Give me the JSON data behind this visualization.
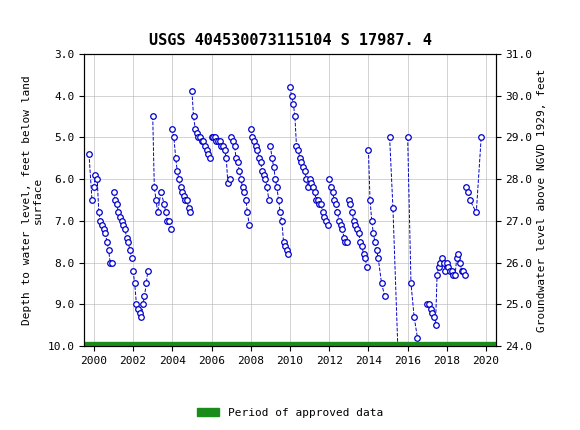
{
  "title": "USGS 404530073115104 S 17987. 4",
  "ylabel_left": "Depth to water level, feet below land\nsurface",
  "ylabel_right": "Groundwater level above NGVD 1929, feet",
  "xlim": [
    1999.5,
    2020.5
  ],
  "ylim_left": [
    10.0,
    3.0
  ],
  "ylim_right": [
    24.0,
    31.0
  ],
  "xticks": [
    2000,
    2002,
    2004,
    2006,
    2008,
    2010,
    2012,
    2014,
    2016,
    2018,
    2020
  ],
  "yticks_left": [
    3.0,
    4.0,
    5.0,
    6.0,
    7.0,
    8.0,
    9.0,
    10.0
  ],
  "yticks_right": [
    24.0,
    25.0,
    26.0,
    27.0,
    28.0,
    29.0,
    30.0,
    31.0
  ],
  "header_color": "#1a6b3c",
  "data_color": "#0000cc",
  "approved_color": "#1a8c1a",
  "marker": "o",
  "markersize": 4,
  "linestyle": "--",
  "linewidth": 0.7,
  "segments": [
    {
      "x": [
        1999.75,
        1999.9
      ],
      "y": [
        5.4,
        6.5
      ]
    },
    {
      "x": [
        2000.0,
        2000.08,
        2000.17,
        2000.25,
        2000.33,
        2000.42,
        2000.5,
        2000.58,
        2000.67,
        2000.75,
        2000.83,
        2000.92
      ],
      "y": [
        6.2,
        5.9,
        6.0,
        6.8,
        7.0,
        7.1,
        7.2,
        7.3,
        7.5,
        7.7,
        8.0,
        8.0
      ]
    },
    {
      "x": [
        2001.0,
        2001.08,
        2001.17,
        2001.25,
        2001.33,
        2001.42,
        2001.5,
        2001.58,
        2001.67,
        2001.75,
        2001.83,
        2001.92
      ],
      "y": [
        6.3,
        6.5,
        6.6,
        6.8,
        6.9,
        7.0,
        7.1,
        7.2,
        7.4,
        7.5,
        7.7,
        7.9
      ]
    },
    {
      "x": [
        2002.0,
        2002.08,
        2002.17,
        2002.25,
        2002.33,
        2002.42,
        2002.5,
        2002.58,
        2002.67,
        2002.75
      ],
      "y": [
        8.2,
        8.5,
        9.0,
        9.1,
        9.2,
        9.3,
        9.0,
        8.8,
        8.5,
        8.2
      ]
    },
    {
      "x": [
        2003.0,
        2003.08,
        2003.17,
        2003.25,
        2003.42,
        2003.58,
        2003.67,
        2003.75,
        2003.83,
        2003.92
      ],
      "y": [
        4.5,
        6.2,
        6.5,
        6.8,
        6.3,
        6.6,
        6.8,
        7.0,
        7.0,
        7.2
      ]
    },
    {
      "x": [
        2004.0,
        2004.08,
        2004.17,
        2004.25,
        2004.33,
        2004.42,
        2004.5,
        2004.58,
        2004.67,
        2004.75,
        2004.83,
        2004.92
      ],
      "y": [
        4.8,
        5.0,
        5.5,
        5.8,
        6.0,
        6.2,
        6.3,
        6.4,
        6.5,
        6.5,
        6.7,
        6.8
      ]
    },
    {
      "x": [
        2005.0,
        2005.08,
        2005.17,
        2005.25,
        2005.33,
        2005.42,
        2005.5,
        2005.58,
        2005.67,
        2005.75,
        2005.83,
        2005.92
      ],
      "y": [
        3.9,
        4.5,
        4.8,
        4.9,
        5.0,
        5.0,
        5.1,
        5.1,
        5.2,
        5.3,
        5.4,
        5.5
      ]
    },
    {
      "x": [
        2006.0,
        2006.08,
        2006.17,
        2006.25,
        2006.33,
        2006.42,
        2006.5,
        2006.58,
        2006.67,
        2006.75,
        2006.83,
        2006.92
      ],
      "y": [
        5.0,
        5.0,
        5.0,
        5.1,
        5.1,
        5.1,
        5.2,
        5.2,
        5.3,
        5.5,
        6.1,
        6.0
      ]
    },
    {
      "x": [
        2007.0,
        2007.08,
        2007.17,
        2007.25,
        2007.33,
        2007.42,
        2007.5,
        2007.58,
        2007.67,
        2007.75,
        2007.83,
        2007.92
      ],
      "y": [
        5.0,
        5.1,
        5.2,
        5.5,
        5.6,
        5.8,
        6.0,
        6.2,
        6.3,
        6.5,
        6.8,
        7.1
      ]
    },
    {
      "x": [
        2008.0,
        2008.08,
        2008.17,
        2008.25,
        2008.33,
        2008.42,
        2008.5,
        2008.58,
        2008.67,
        2008.75,
        2008.83,
        2008.92
      ],
      "y": [
        4.8,
        5.0,
        5.1,
        5.2,
        5.3,
        5.5,
        5.6,
        5.8,
        5.9,
        6.0,
        6.2,
        6.5
      ]
    },
    {
      "x": [
        2009.0,
        2009.08,
        2009.17,
        2009.25,
        2009.33,
        2009.42,
        2009.5,
        2009.58,
        2009.67,
        2009.75,
        2009.83,
        2009.92
      ],
      "y": [
        5.2,
        5.5,
        5.7,
        6.0,
        6.2,
        6.5,
        6.8,
        7.0,
        7.5,
        7.6,
        7.7,
        7.8
      ]
    },
    {
      "x": [
        2010.0,
        2010.08,
        2010.17,
        2010.25,
        2010.33,
        2010.42,
        2010.5,
        2010.58,
        2010.67,
        2010.75,
        2010.83,
        2010.92
      ],
      "y": [
        3.8,
        4.0,
        4.2,
        4.5,
        5.2,
        5.3,
        5.5,
        5.6,
        5.7,
        5.8,
        6.0,
        6.2
      ]
    },
    {
      "x": [
        2011.0,
        2011.08,
        2011.17,
        2011.25,
        2011.33,
        2011.42,
        2011.5,
        2011.58,
        2011.67,
        2011.75,
        2011.83,
        2011.92
      ],
      "y": [
        6.0,
        6.1,
        6.2,
        6.3,
        6.5,
        6.5,
        6.6,
        6.6,
        6.8,
        6.9,
        7.0,
        7.1
      ]
    },
    {
      "x": [
        2012.0,
        2012.08,
        2012.17,
        2012.25,
        2012.33,
        2012.42,
        2012.5,
        2012.58,
        2012.67,
        2012.75,
        2012.83,
        2012.92
      ],
      "y": [
        6.0,
        6.2,
        6.3,
        6.5,
        6.6,
        6.8,
        7.0,
        7.1,
        7.2,
        7.4,
        7.5,
        7.5
      ]
    },
    {
      "x": [
        2013.0,
        2013.08,
        2013.17,
        2013.25,
        2013.33,
        2013.42,
        2013.5,
        2013.58,
        2013.67,
        2013.75,
        2013.83,
        2013.92
      ],
      "y": [
        6.5,
        6.6,
        6.8,
        7.0,
        7.1,
        7.2,
        7.3,
        7.5,
        7.6,
        7.8,
        7.9,
        8.1
      ]
    },
    {
      "x": [
        2014.0,
        2014.08,
        2014.17,
        2014.25,
        2014.33,
        2014.42,
        2014.5,
        2014.67,
        2014.83
      ],
      "y": [
        5.3,
        6.5,
        7.0,
        7.3,
        7.5,
        7.7,
        7.9,
        8.5,
        8.8
      ]
    },
    {
      "x": [
        2015.08,
        2015.25,
        2015.5
      ],
      "y": [
        5.0,
        6.7,
        10.05
      ]
    },
    {
      "x": [
        2016.0,
        2016.17,
        2016.33,
        2016.5,
        2016.67,
        2016.75,
        2016.83,
        2016.92
      ],
      "y": [
        5.0,
        8.5,
        9.3,
        9.8,
        10.05,
        10.1,
        10.1,
        10.1
      ]
    },
    {
      "x": [
        2017.0,
        2017.08,
        2017.17,
        2017.25,
        2017.33,
        2017.42,
        2017.5,
        2017.58,
        2017.67,
        2017.75,
        2017.83,
        2017.92
      ],
      "y": [
        9.0,
        9.0,
        9.1,
        9.2,
        9.3,
        9.5,
        8.3,
        8.1,
        8.0,
        7.9,
        8.0,
        8.2
      ]
    },
    {
      "x": [
        2018.0,
        2018.08,
        2018.17,
        2018.25,
        2018.33,
        2018.42,
        2018.5,
        2018.58,
        2018.67,
        2018.75,
        2018.83,
        2018.92
      ],
      "y": [
        8.0,
        8.1,
        8.2,
        8.2,
        8.3,
        8.3,
        7.9,
        7.8,
        8.0,
        8.2,
        8.2,
        8.3
      ]
    },
    {
      "x": [
        2019.0,
        2019.08,
        2019.17,
        2019.5,
        2019.75
      ],
      "y": [
        6.2,
        6.3,
        6.5,
        6.8,
        5.0
      ]
    }
  ],
  "approved_bar_y": 10.0,
  "legend_label": "Period of approved data",
  "bg_color": "#ffffff",
  "tick_fontsize": 8,
  "label_fontsize": 8,
  "title_fontsize": 11
}
